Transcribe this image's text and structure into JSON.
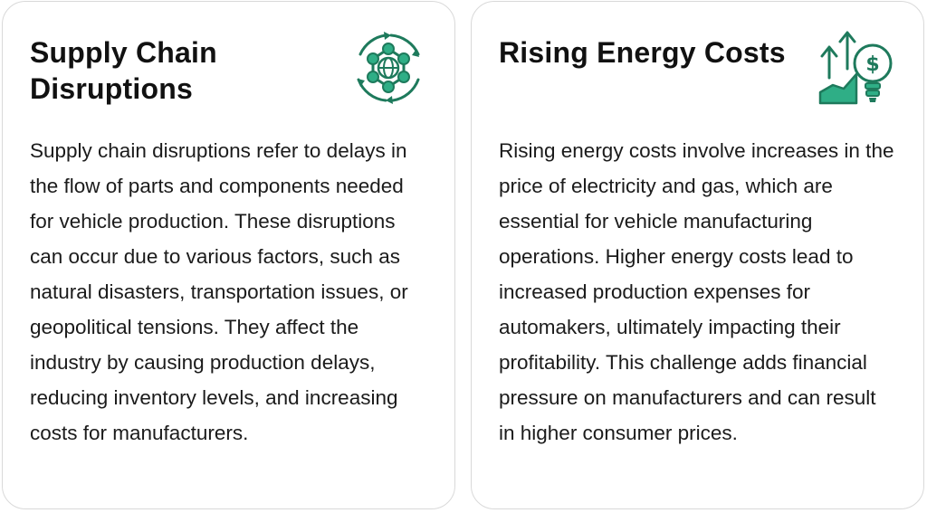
{
  "cards": [
    {
      "title": "Supply Chain Disruptions",
      "icon": "supply-chain-network-icon",
      "body": "Supply chain disruptions refer to delays in the flow of parts and components needed for vehicle production. These disruptions can occur due to various factors, such as natural disasters, transportation issues, or geopolitical tensions. They affect the industry by causing production delays, reducing inventory levels, and increasing costs for manufacturers."
    },
    {
      "title": "Rising Energy Costs",
      "icon": "rising-energy-cost-icon",
      "body": "Rising energy costs involve increases in the price of electricity and gas, which are essential for vehicle manufacturing operations. Higher energy costs lead to increased production expenses for automakers, ultimately impacting their profitability. This challenge adds financial pressure on manufacturers and can result in higher consumer prices."
    }
  ],
  "colors": {
    "accent": "#1e7a5c",
    "accent_light": "#2fae86",
    "border": "#d9d9d9"
  },
  "icon_text": {
    "currency_symbol": "$"
  }
}
